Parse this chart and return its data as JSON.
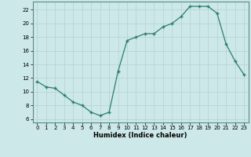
{
  "x": [
    0,
    1,
    2,
    3,
    4,
    5,
    6,
    7,
    8,
    9,
    10,
    11,
    12,
    13,
    14,
    15,
    16,
    17,
    18,
    19,
    20,
    21,
    22,
    23
  ],
  "y": [
    11.5,
    10.7,
    10.5,
    9.5,
    8.5,
    8.0,
    7.0,
    6.5,
    7.0,
    13.0,
    17.5,
    18.0,
    18.5,
    18.5,
    19.5,
    20.0,
    21.0,
    22.5,
    22.5,
    22.5,
    21.5,
    17.0,
    14.5,
    12.5
  ],
  "xlim": [
    -0.5,
    23.5
  ],
  "ylim": [
    5.5,
    23.2
  ],
  "yticks": [
    6,
    8,
    10,
    12,
    14,
    16,
    18,
    20,
    22
  ],
  "xticks": [
    0,
    1,
    2,
    3,
    4,
    5,
    6,
    7,
    8,
    9,
    10,
    11,
    12,
    13,
    14,
    15,
    16,
    17,
    18,
    19,
    20,
    21,
    22,
    23
  ],
  "xlabel": "Humidex (Indice chaleur)",
  "line_color": "#2e7d6e",
  "marker": "+",
  "bg_color": "#cce8e8",
  "grid_color": "#b8d4d4",
  "spine_color": "#5a8a8a"
}
